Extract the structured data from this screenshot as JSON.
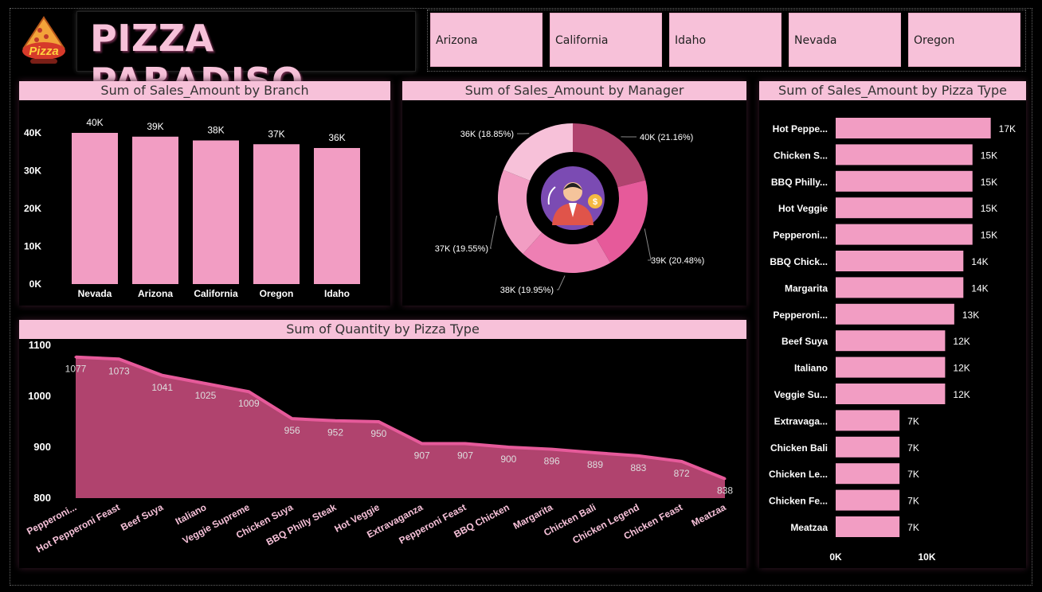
{
  "header": {
    "title": "PIZZA PARADISO",
    "logo_text": "Pizza"
  },
  "slicers": [
    "Arizona",
    "California",
    "Idaho",
    "Nevada",
    "Oregon"
  ],
  "colors": {
    "pink": "#f29dc3",
    "light_pink": "#f7c1d9",
    "dark_pink": "#b0436e",
    "hot_pink": "#e65a9a"
  },
  "chart_data": [
    {
      "id": "branch",
      "type": "bar",
      "title": "Sum of Sales_Amount by Branch",
      "categories": [
        "Nevada",
        "Arizona",
        "California",
        "Oregon",
        "Idaho"
      ],
      "values": [
        40,
        39,
        38,
        37,
        36
      ],
      "data_labels": [
        "40K",
        "39K",
        "38K",
        "37K",
        "36K"
      ],
      "y_ticks": [
        "0K",
        "10K",
        "20K",
        "30K",
        "40K"
      ],
      "ylim": [
        0,
        40
      ]
    },
    {
      "id": "manager",
      "type": "pie",
      "title": "Sum of Sales_Amount by Manager",
      "values": [
        21.16,
        20.48,
        19.95,
        19.55,
        18.85
      ],
      "labels": [
        "40K (21.16%)",
        "39K (20.48%)",
        "38K (19.95%)",
        "37K (19.55%)",
        "36K (18.85%)"
      ],
      "colors": [
        "#b0436e",
        "#e65a9a",
        "#ee7fb3",
        "#f29dc3",
        "#f7c1d9"
      ]
    },
    {
      "id": "pizza_type",
      "type": "bar",
      "orientation": "horizontal",
      "title": "Sum of Sales_Amount by Pizza Type",
      "categories": [
        "Hot Peppe...",
        "Chicken S...",
        "BBQ Philly...",
        "Hot Veggie",
        "Pepperoni...",
        "BBQ Chick...",
        "Margarita",
        "Pepperoni...",
        "Beef Suya",
        "Italiano",
        "Veggie Su...",
        "Extravaga...",
        "Chicken Bali",
        "Chicken Le...",
        "Chicken Fe...",
        "Meatzaa"
      ],
      "values": [
        17,
        15,
        15,
        15,
        15,
        14,
        14,
        13,
        12,
        12,
        12,
        7,
        7,
        7,
        7,
        7
      ],
      "data_labels": [
        "17K",
        "15K",
        "15K",
        "15K",
        "15K",
        "14K",
        "14K",
        "13K",
        "12K",
        "12K",
        "12K",
        "7K",
        "7K",
        "7K",
        "7K",
        "7K"
      ],
      "x_ticks": [
        "0K",
        "10K"
      ]
    },
    {
      "id": "quantity",
      "type": "area",
      "title": "Sum of Quantity by Pizza Type",
      "categories": [
        "Pepperoni...",
        "Hot Pepperoni Feast",
        "Beef Suya",
        "Italiano",
        "Veggie Supreme",
        "Chicken Suya",
        "BBQ Philly Steak",
        "Hot Veggie",
        "Extravaganza",
        "Pepperoni Feast",
        "BBQ Chicken",
        "Margarita",
        "Chicken Bali",
        "Chicken Legend",
        "Chicken Feast",
        "Meatzaa"
      ],
      "values": [
        1077,
        1073,
        1041,
        1025,
        1009,
        956,
        952,
        950,
        907,
        907,
        900,
        896,
        889,
        883,
        872,
        838
      ],
      "y_ticks": [
        "800",
        "900",
        "1000",
        "1100"
      ],
      "ylim": [
        800,
        1100
      ]
    }
  ]
}
